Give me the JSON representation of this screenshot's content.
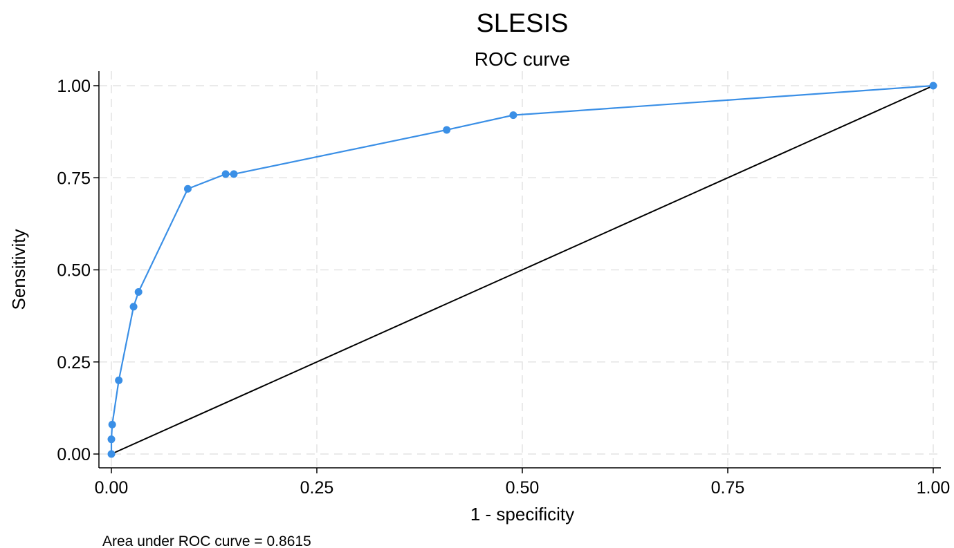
{
  "chart_data": {
    "type": "line",
    "title": "SLESIS",
    "subtitle": "ROC curve",
    "xlabel": "1 - specificity",
    "ylabel": "Sensitivity",
    "xlim": [
      0,
      1
    ],
    "ylim": [
      0,
      1
    ],
    "xticks": [
      "0.00",
      "0.25",
      "0.50",
      "0.75",
      "1.00"
    ],
    "yticks": [
      "0.00",
      "0.25",
      "0.50",
      "0.75",
      "1.00"
    ],
    "grid": true,
    "note": "Area under ROC curve = 0.8615",
    "colors": {
      "roc": "#3a8fe6",
      "reference": "#000000",
      "grid": "#e3e3e3"
    },
    "series": [
      {
        "values": [
          {
            "x": 0.0,
            "y": 0.0
          },
          {
            "x": 0.0,
            "y": 0.04
          },
          {
            "x": 0.001,
            "y": 0.08
          },
          {
            "x": 0.009,
            "y": 0.2
          },
          {
            "x": 0.027,
            "y": 0.4
          },
          {
            "x": 0.033,
            "y": 0.44
          },
          {
            "x": 0.093,
            "y": 0.72
          },
          {
            "x": 0.139,
            "y": 0.76
          },
          {
            "x": 0.149,
            "y": 0.76
          },
          {
            "x": 0.408,
            "y": 0.88
          },
          {
            "x": 0.489,
            "y": 0.92
          },
          {
            "x": 1.0,
            "y": 1.0
          }
        ]
      },
      {
        "values": [
          {
            "x": 0,
            "y": 0
          },
          {
            "x": 1,
            "y": 1
          }
        ]
      }
    ]
  }
}
